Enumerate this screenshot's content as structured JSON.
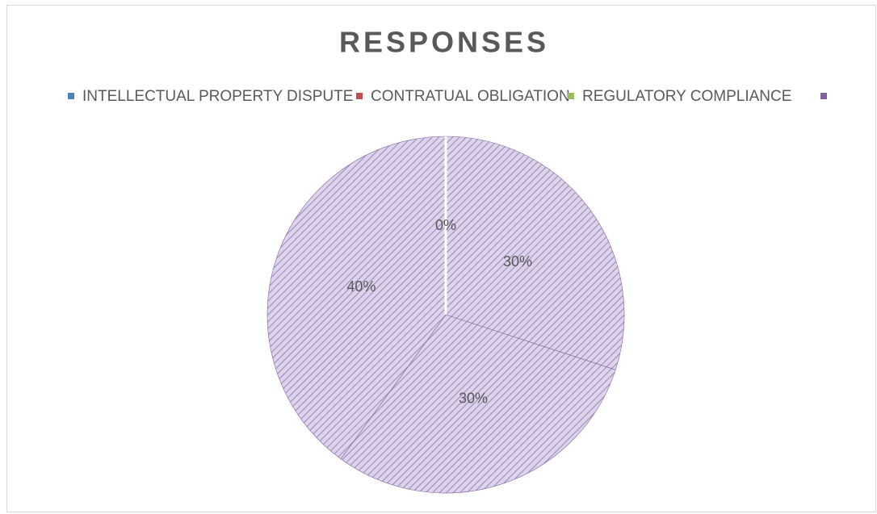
{
  "chart_data": {
    "type": "pie",
    "title": "RESPONSES",
    "categories": [
      "INTELLECTUAL PROPERTY DISPUTE",
      "CONTRATUAL OBLIGATION",
      "REGULATORY COMPLIANCE",
      null
    ],
    "colors": [
      "#4f81bd",
      "#c0504d",
      "#9bbb59",
      "#8064a2"
    ],
    "slice_color": "#8064a2",
    "values": [
      30,
      30,
      40,
      0
    ],
    "value_labels": [
      "30%",
      "30%",
      "40%",
      "0%"
    ]
  }
}
